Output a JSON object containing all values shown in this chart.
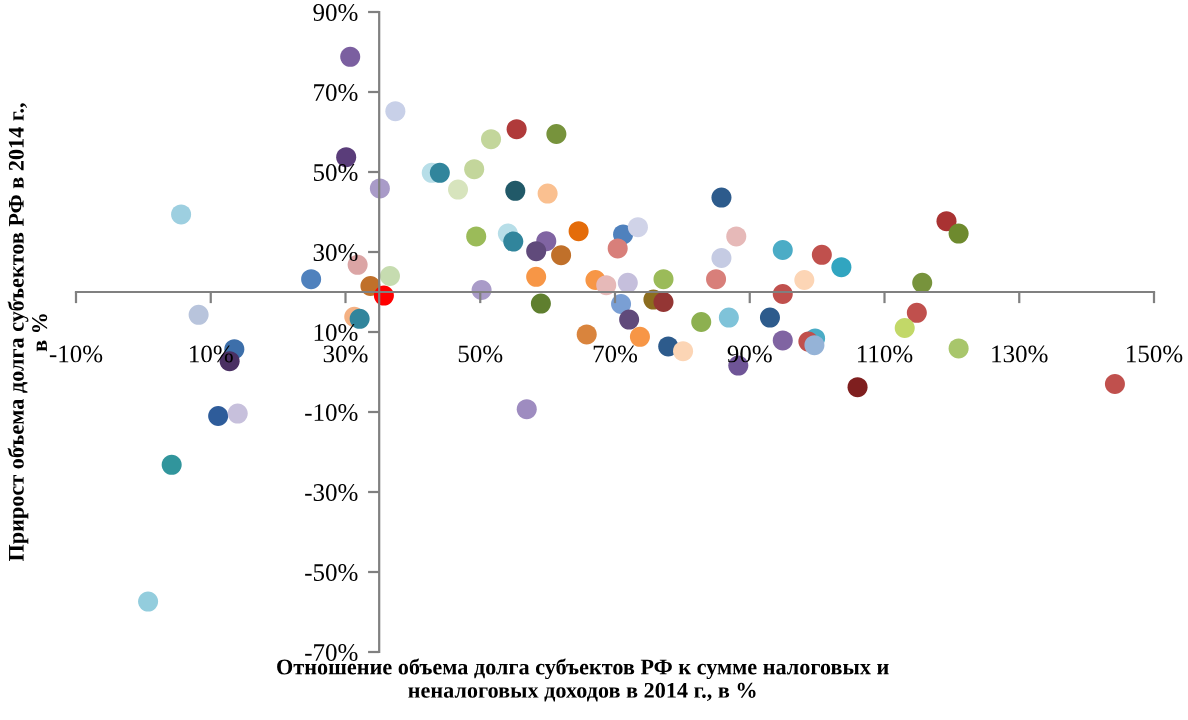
{
  "chart_data": {
    "type": "scatter",
    "xlabel": "Отношение объема долга субъектов РФ к сумме налоговых и\nненалоговых доходов в 2014 г., в %",
    "ylabel": "Прирост объема долга субъектов РФ в 2014 г.,\nв %",
    "x": [
      30.7,
      37.4,
      30.1,
      35.1,
      5.6,
      24.9,
      31.8,
      36.6,
      33.7,
      35.7,
      8.2,
      31.3,
      32.1,
      13.5,
      12.8,
      11.1,
      14.0,
      4.2,
      0.7,
      56.9,
      42.8,
      44.0,
      51.6,
      49.1,
      46.7,
      55.4,
      61.3,
      55.2,
      60.0,
      49.4,
      54.1,
      54.9,
      59.8,
      58.3,
      64.6,
      62.0,
      58.3,
      67.1,
      50.2,
      59.0,
      65.8,
      85.8,
      119.2,
      121.0,
      71.2,
      73.4,
      70.4,
      88.0,
      85.8,
      94.9,
      100.7,
      103.6,
      77.2,
      85.0,
      98.1,
      115.6,
      71.9,
      68.7,
      94.9,
      70.9,
      75.7,
      77.2,
      114.8,
      82.8,
      86.9,
      93.0,
      113.0,
      72.1,
      73.7,
      94.9,
      99.7,
      98.7,
      99.6,
      77.9,
      80.1,
      121.0,
      88.3,
      106.0,
      144.2
    ],
    "values": [
      78.8,
      65.2,
      53.7,
      45.9,
      39.4,
      23.2,
      26.8,
      24.0,
      21.5,
      19.1,
      14.3,
      13.8,
      13.3,
      5.7,
      2.7,
      -11.0,
      -10.4,
      -23.2,
      -57.4,
      -9.3,
      49.8,
      49.8,
      58.2,
      50.7,
      45.6,
      60.7,
      59.5,
      45.3,
      44.6,
      33.9,
      34.6,
      32.6,
      32.7,
      30.2,
      35.2,
      29.2,
      23.8,
      23.0,
      20.5,
      17.1,
      9.4,
      43.6,
      37.7,
      34.6,
      34.4,
      36.2,
      30.9,
      33.9,
      28.5,
      30.5,
      29.3,
      26.2,
      23.2,
      23.2,
      23.0,
      22.3,
      22.3,
      21.7,
      19.5,
      17.0,
      18.1,
      17.5,
      14.8,
      12.5,
      13.6,
      13.6,
      11.0,
      13.1,
      8.8,
      7.9,
      8.4,
      7.6,
      6.7,
      6.4,
      5.2,
      5.9,
      1.6,
      -3.8,
      -3.0
    ],
    "colors": [
      "#7b5fa0",
      "#c8d0e8",
      "#5a3d7a",
      "#a99bc8",
      "#9dcfe0",
      "#4f81bd",
      "#dba5a5",
      "#c6dcb0",
      "#c0702a",
      "#ff0000",
      "#b8c4dc",
      "#f4b183",
      "#31859c",
      "#3d6faa",
      "#4a3063",
      "#2e5c9a",
      "#c7c0dc",
      "#31959c",
      "#93cddd",
      "#9e8cc0",
      "#b7dee8",
      "#31859c",
      "#c3d69b",
      "#c3d69b",
      "#d7e4bd",
      "#b03a3a",
      "#77933c",
      "#215968",
      "#fac090",
      "#9bbb59",
      "#b7dee8",
      "#31859c",
      "#8064a2",
      "#604a7b",
      "#e46c0a",
      "#c0702a",
      "#f79646",
      "#f79646",
      "#a99bc8",
      "#5f7f2f",
      "#d9843d",
      "#2d5b8c",
      "#a93232",
      "#6e8a2e",
      "#4f81bd",
      "#d0d3e8",
      "#d87f7a",
      "#e6b9b8",
      "#c5cbe3",
      "#4bacc6",
      "#c0504d",
      "#31a5c0",
      "#9bbb59",
      "#d87f7a",
      "#fcd5b5",
      "#77933c",
      "#c5bfdc",
      "#e6b9b8",
      "#c0504d",
      "#7a9fd4",
      "#8c6d1f",
      "#943634",
      "#c0504d",
      "#8db050",
      "#7fc3d9",
      "#2d5b8c",
      "#c2d868",
      "#604a7b",
      "#f79646",
      "#8064a2",
      "#4bacc6",
      "#c0504d",
      "#95b3d7",
      "#2d5b8c",
      "#fcd5b5",
      "#a8c66b",
      "#6f5597",
      "#7f1f1f",
      "#c0504d"
    ],
    "marker": "circle",
    "xlim": [
      -10,
      150
    ],
    "xticks": [
      {
        "value": -10,
        "label": "-10%"
      },
      {
        "value": 10,
        "label": "10%"
      },
      {
        "value": 30,
        "label": "30%"
      },
      {
        "value": 50,
        "label": "50%"
      },
      {
        "value": 70,
        "label": "70%"
      },
      {
        "value": 90,
        "label": "90%"
      },
      {
        "value": 110,
        "label": "110%"
      },
      {
        "value": 130,
        "label": "130%"
      },
      {
        "value": 150,
        "label": "150%"
      }
    ],
    "ylim": [
      -70,
      90
    ],
    "yticks": [
      {
        "value": -70,
        "label": "-70%"
      },
      {
        "value": -50,
        "label": "-50%"
      },
      {
        "value": -30,
        "label": "-30%"
      },
      {
        "value": -10,
        "label": "-10%"
      },
      {
        "value": 10,
        "label": "10%"
      },
      {
        "value": 30,
        "label": "30%"
      },
      {
        "value": 50,
        "label": "50%"
      },
      {
        "value": 70,
        "label": "70%"
      },
      {
        "value": 90,
        "label": "90%"
      }
    ],
    "grid": false
  }
}
